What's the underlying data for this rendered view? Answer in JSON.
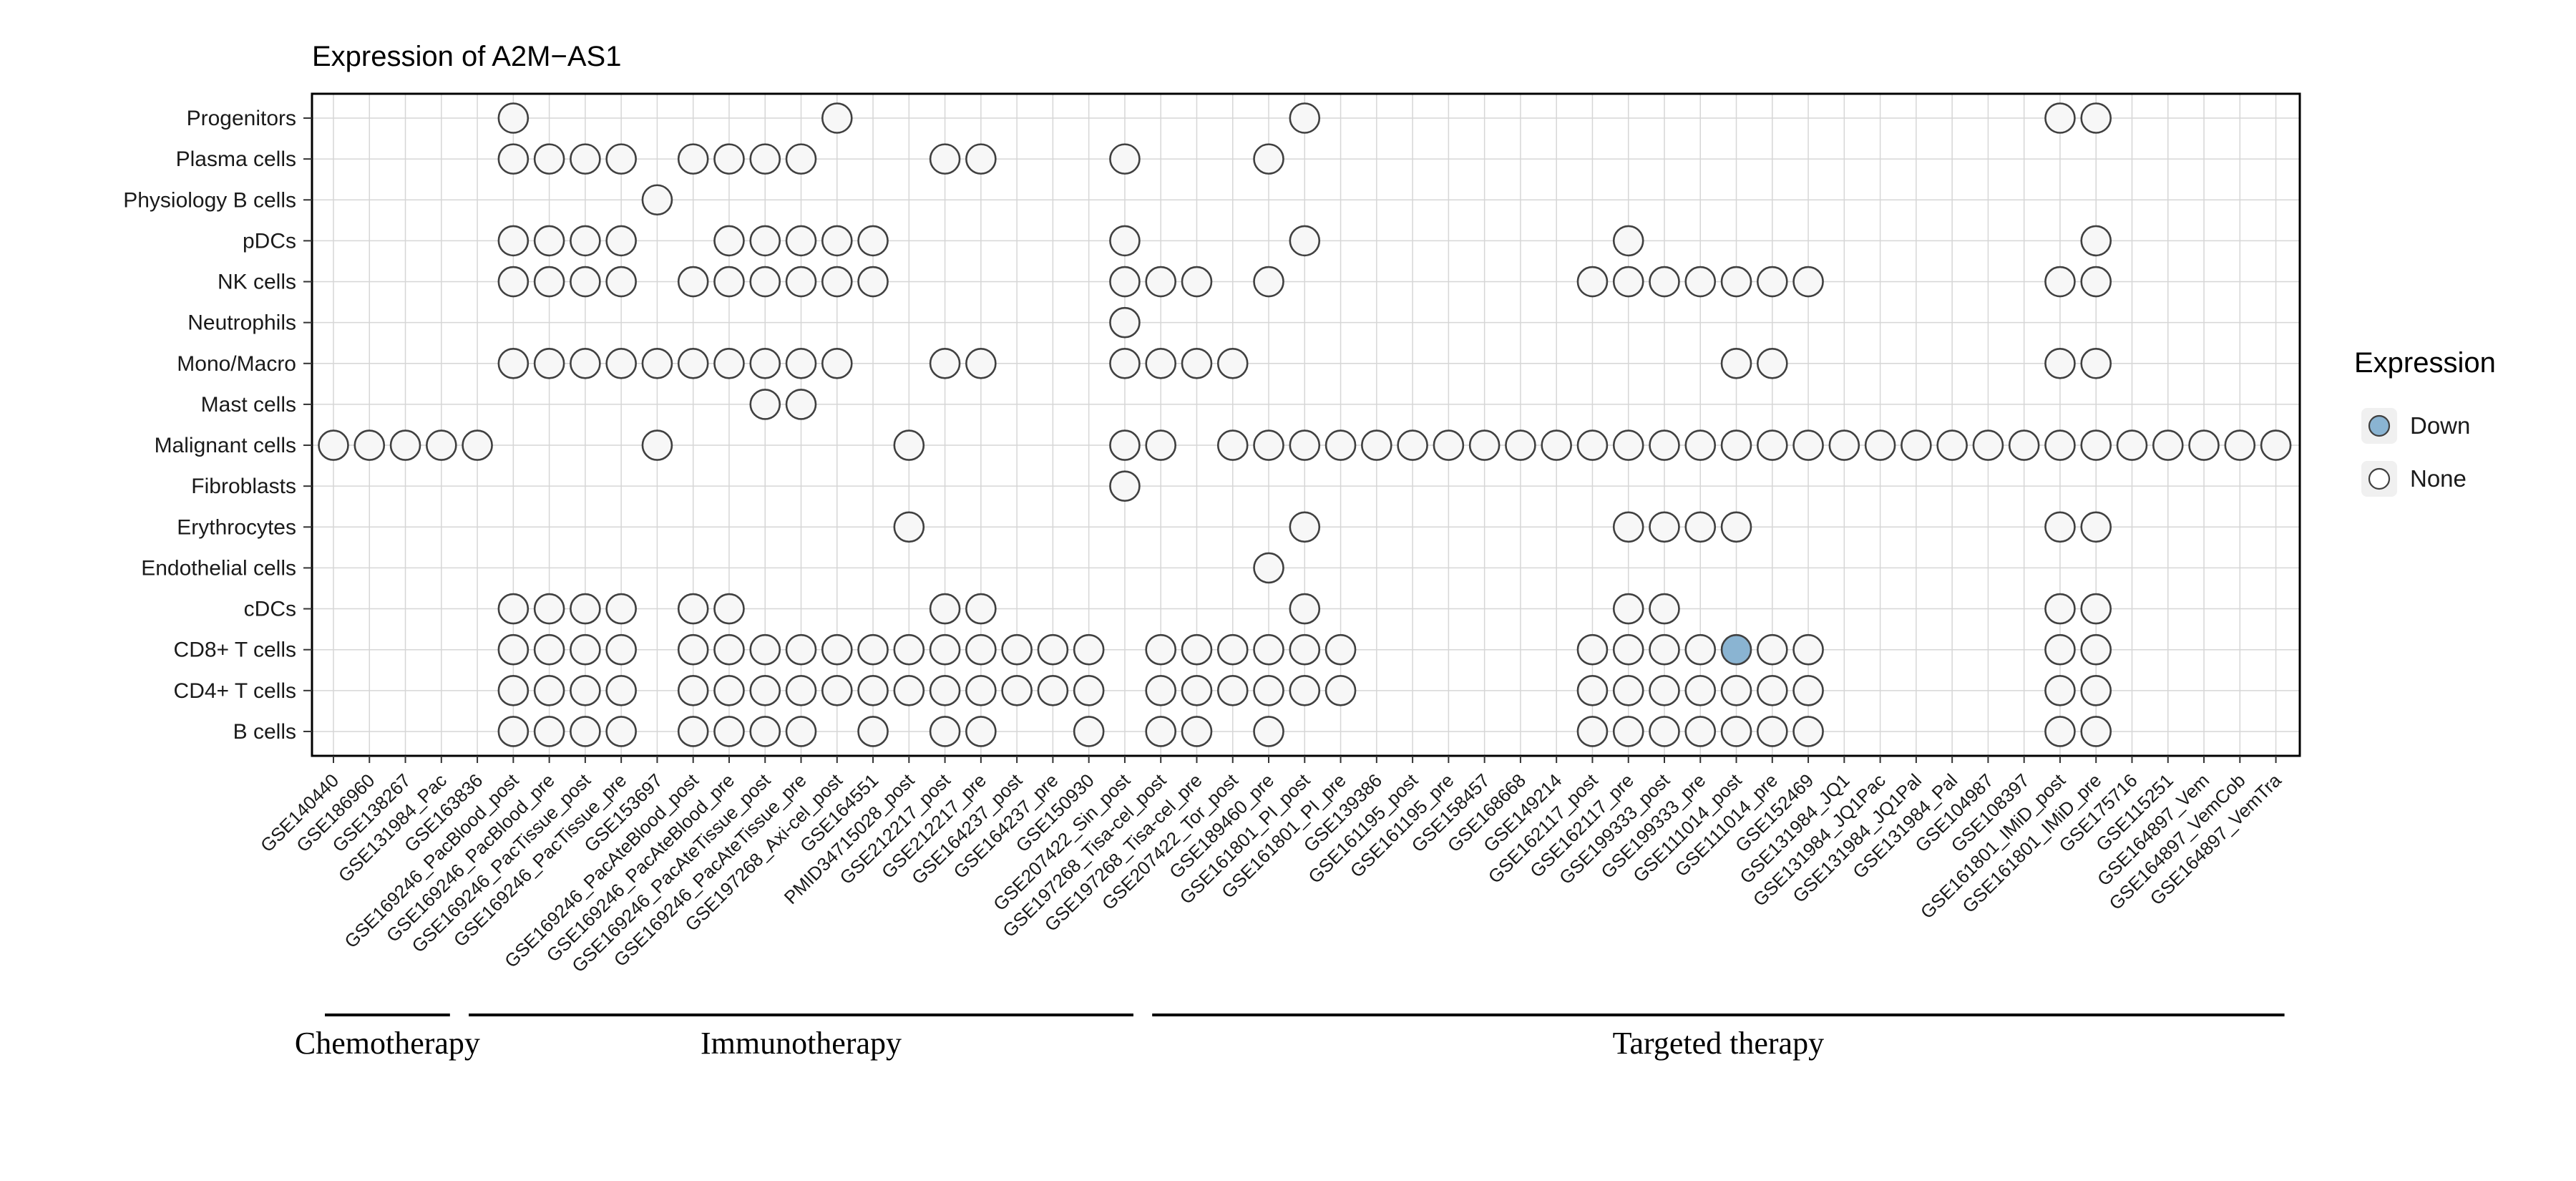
{
  "title": "Expression of A2M−AS1",
  "legend": {
    "title": "Expression",
    "entries": [
      {
        "label": "Down",
        "color": "#8AB4D2"
      },
      {
        "label": "None",
        "color": "#FFFFFF"
      }
    ]
  },
  "chart_data": {
    "type": "scatter",
    "subtype": "dot-matrix",
    "title": "Expression of A2M−AS1",
    "rows": [
      "Progenitors",
      "Plasma cells",
      "Physiology B cells",
      "pDCs",
      "NK cells",
      "Neutrophils",
      "Mono/Macro",
      "Mast cells",
      "Malignant cells",
      "Fibroblasts",
      "Erythrocytes",
      "Endothelial cells",
      "cDCs",
      "CD8+ T cells",
      "CD4+ T cells",
      "B cells"
    ],
    "columns": [
      "GSE140440",
      "GSE186960",
      "GSE138267",
      "GSE131984_Pac",
      "GSE163836",
      "GSE169246_PacBlood_post",
      "GSE169246_PacBlood_pre",
      "GSE169246_PacTissue_post",
      "GSE169246_PacTissue_pre",
      "GSE153697",
      "GSE169246_PacAteBlood_post",
      "GSE169246_PacAteBlood_pre",
      "GSE169246_PacAteTissue_post",
      "GSE169246_PacAteTissue_pre",
      "GSE197268_Axi-cel_post",
      "GSE164551",
      "PMID34715028_post",
      "GSE212217_post",
      "GSE212217_pre",
      "GSE164237_post",
      "GSE164237_pre",
      "GSE150930",
      "GSE207422_Sin_post",
      "GSE197268_Tisa-cel_post",
      "GSE197268_Tisa-cel_pre",
      "GSE207422_Tor_post",
      "GSE189460_pre",
      "GSE161801_PI_post",
      "GSE161801_PI_pre",
      "GSE139386",
      "GSE161195_post",
      "GSE161195_pre",
      "GSE158457",
      "GSE168668",
      "GSE149214",
      "GSE162117_post",
      "GSE162117_pre",
      "GSE199333_post",
      "GSE199333_pre",
      "GSE111014_post",
      "GSE111014_pre",
      "GSE152469",
      "GSE131984_JQ1",
      "GSE131984_JQ1Pac",
      "GSE131984_JQ1Pal",
      "GSE131984_Pal",
      "GSE104987",
      "GSE108397",
      "GSE161801_IMiD_post",
      "GSE161801_IMiD_pre",
      "GSE175716",
      "GSE115251",
      "GSE164897_Vem",
      "GSE164897_VemCob",
      "GSE164897_VemTra"
    ],
    "groups": [
      {
        "label": "Chemotherapy",
        "start": 0,
        "end": 3
      },
      {
        "label": "Immunotherapy",
        "start": 4,
        "end": 22
      },
      {
        "label": "Targeted therapy",
        "start": 23,
        "end": 54
      }
    ],
    "dots": [
      {
        "row": 0,
        "cols": [
          5,
          14,
          27,
          48,
          49
        ]
      },
      {
        "row": 1,
        "cols": [
          5,
          6,
          7,
          8,
          10,
          11,
          12,
          13,
          17,
          18,
          22,
          26
        ]
      },
      {
        "row": 2,
        "cols": [
          9
        ]
      },
      {
        "row": 3,
        "cols": [
          5,
          6,
          7,
          8,
          11,
          12,
          13,
          14,
          15,
          22,
          27,
          36,
          49
        ]
      },
      {
        "row": 4,
        "cols": [
          5,
          6,
          7,
          8,
          10,
          11,
          12,
          13,
          14,
          15,
          22,
          23,
          24,
          26,
          35,
          36,
          37,
          38,
          39,
          40,
          41,
          48,
          49
        ]
      },
      {
        "row": 5,
        "cols": [
          22
        ]
      },
      {
        "row": 6,
        "cols": [
          5,
          6,
          7,
          8,
          9,
          10,
          11,
          12,
          13,
          14,
          17,
          18,
          22,
          23,
          24,
          25,
          39,
          40,
          48,
          49
        ]
      },
      {
        "row": 7,
        "cols": [
          12,
          13
        ]
      },
      {
        "row": 8,
        "cols": [
          0,
          1,
          2,
          3,
          4,
          9,
          16,
          22,
          23,
          25,
          26,
          27,
          28,
          29,
          30,
          31,
          32,
          33,
          34,
          35,
          36,
          37,
          38,
          39,
          40,
          41,
          42,
          43,
          44,
          45,
          46,
          47,
          48,
          49,
          50,
          51,
          52,
          53,
          54
        ]
      },
      {
        "row": 9,
        "cols": [
          22
        ]
      },
      {
        "row": 10,
        "cols": [
          16,
          27,
          36,
          37,
          38,
          39,
          48,
          49
        ]
      },
      {
        "row": 11,
        "cols": [
          26
        ]
      },
      {
        "row": 12,
        "cols": [
          5,
          6,
          7,
          8,
          10,
          11,
          17,
          18,
          27,
          36,
          37,
          48,
          49
        ]
      },
      {
        "row": 13,
        "cols": [
          5,
          6,
          7,
          8,
          10,
          11,
          12,
          13,
          14,
          15,
          16,
          17,
          18,
          19,
          20,
          21,
          23,
          24,
          25,
          26,
          27,
          28,
          35,
          36,
          37,
          38,
          39,
          40,
          41,
          48,
          49
        ]
      },
      {
        "row": 14,
        "cols": [
          5,
          6,
          7,
          8,
          10,
          11,
          12,
          13,
          14,
          15,
          16,
          17,
          18,
          19,
          20,
          21,
          23,
          24,
          25,
          26,
          27,
          28,
          35,
          36,
          37,
          38,
          39,
          40,
          41,
          48,
          49
        ]
      },
      {
        "row": 15,
        "cols": [
          5,
          6,
          7,
          8,
          10,
          11,
          12,
          13,
          15,
          17,
          18,
          21,
          23,
          24,
          26,
          35,
          36,
          37,
          38,
          39,
          40,
          41,
          48,
          49
        ]
      }
    ],
    "down": [
      {
        "row": 13,
        "col": 39
      }
    ],
    "colors": {
      "none_fill": "#F7F7F7",
      "down_fill": "#8AB4D2",
      "stroke": "#404040",
      "grid": "#D6D6D6",
      "border": "#000000",
      "text": "#1A1A1A"
    }
  }
}
